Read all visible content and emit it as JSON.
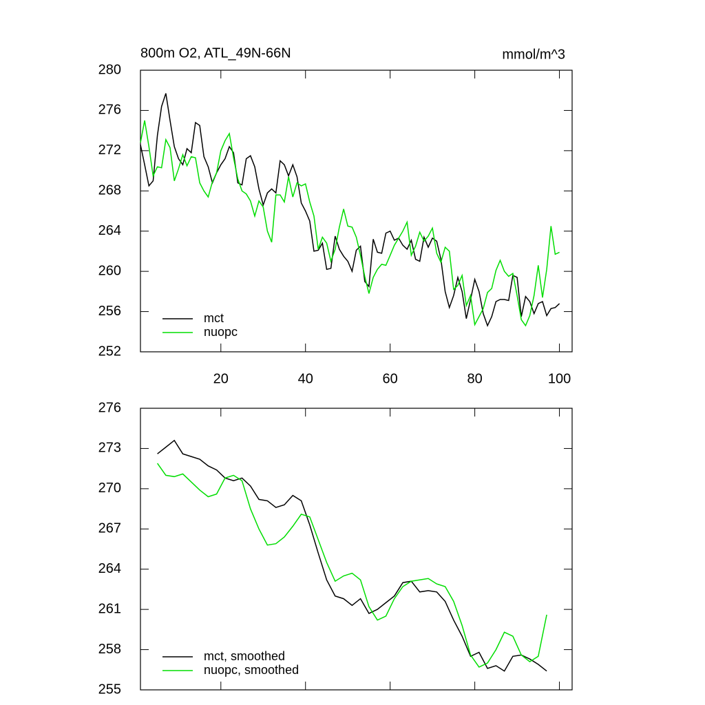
{
  "chart_data": [
    {
      "type": "line",
      "title": "800m O2, ATL_49N-66N",
      "subtitle": "mmol/m^3",
      "x": [
        1,
        2,
        3,
        4,
        5,
        6,
        7,
        8,
        9,
        10,
        11,
        12,
        13,
        14,
        15,
        16,
        17,
        18,
        19,
        20,
        21,
        22,
        23,
        24,
        25,
        26,
        27,
        28,
        29,
        30,
        31,
        32,
        33,
        34,
        35,
        36,
        37,
        38,
        39,
        40,
        41,
        42,
        43,
        44,
        45,
        46,
        47,
        48,
        49,
        50,
        51,
        52,
        53,
        54,
        55,
        56,
        57,
        58,
        59,
        60,
        61,
        62,
        63,
        64,
        65,
        66,
        67,
        68,
        69,
        70,
        71,
        72,
        73,
        74,
        75,
        76,
        77,
        78,
        79,
        80,
        81,
        82,
        83,
        84,
        85,
        86,
        87,
        88,
        89,
        90,
        91,
        92,
        93,
        94,
        95,
        96,
        97,
        98,
        99,
        100
      ],
      "series": [
        {
          "name": "mct",
          "color": "#000000",
          "values": [
            272.6,
            270.6,
            268.5,
            269,
            273.5,
            276.4,
            277.7,
            275,
            272.4,
            271.2,
            270.6,
            272.2,
            271.8,
            274.8,
            274.5,
            271.4,
            270.4,
            268.8,
            269.8,
            270.6,
            271.2,
            272.4,
            271.8,
            268.8,
            268.6,
            271.2,
            271.5,
            270.4,
            268.2,
            266.6,
            267.8,
            268.2,
            267.8,
            271,
            270.6,
            269.5,
            270.6,
            269.4,
            266.8,
            266,
            265,
            262,
            262.1,
            262.8,
            260.2,
            260.3,
            263.5,
            262.2,
            261.5,
            261,
            260,
            262.1,
            262.5,
            259,
            258.5,
            263.2,
            261.9,
            261.8,
            263.8,
            264,
            263.1,
            263.3,
            262.6,
            262.2,
            263.1,
            261.2,
            261,
            263.4,
            262.4,
            263.3,
            263,
            261.2,
            258,
            256.4,
            257.6,
            259.4,
            258,
            255.3,
            257.2,
            259.2,
            258,
            255.8,
            254.6,
            255.5,
            257,
            257.2,
            257.2,
            257.1,
            259.6,
            259.4,
            255.5,
            257.5,
            257,
            255.8,
            256.8,
            257,
            255.6,
            256.3,
            256.4,
            256.8
          ]
        },
        {
          "name": "nuopc",
          "color": "#00dd00",
          "values": [
            272.8,
            275,
            272.4,
            269.5,
            270.4,
            270.3,
            273.1,
            272.3,
            269,
            270.2,
            271.6,
            270.5,
            271.4,
            271.3,
            268.8,
            268,
            267.4,
            268.9,
            269.8,
            272,
            273,
            273.7,
            271.3,
            269.2,
            268,
            267.7,
            267,
            265.5,
            267,
            266.4,
            264,
            262.9,
            267.6,
            267.6,
            266.9,
            269.4,
            267.4,
            268.8,
            268.5,
            268.7,
            266.9,
            265.5,
            262.2,
            263.4,
            262.8,
            261,
            262.2,
            264.4,
            266.2,
            264.5,
            264.4,
            263.4,
            261.6,
            259.5,
            257.8,
            259.4,
            260.2,
            260.7,
            260.6,
            261.6,
            262.6,
            263.3,
            264,
            264.9,
            261.6,
            262.5,
            263.9,
            263,
            263.5,
            264.3,
            261.8,
            260.9,
            262.4,
            262,
            258.2,
            258.6,
            259.6,
            256.6,
            257.6,
            254.7,
            255.5,
            256.3,
            257.9,
            258.3,
            260.1,
            261.1,
            260,
            259.5,
            259.8,
            257.6,
            255.2,
            254.6,
            255.6,
            257.6,
            260.6,
            257.4,
            260.2,
            264.5,
            261.7,
            261.9
          ]
        }
      ],
      "xlim": [
        1,
        103
      ],
      "xticks": [
        20,
        40,
        60,
        80,
        100
      ],
      "xtick_labels": true,
      "ylim": [
        252,
        280
      ],
      "yticks": [
        252,
        256,
        260,
        264,
        268,
        272,
        276,
        280
      ],
      "legend": "lower left",
      "grid": false
    },
    {
      "type": "line",
      "x": [
        5,
        7,
        9,
        11,
        13,
        15,
        17,
        19,
        21,
        23,
        25,
        27,
        29,
        31,
        33,
        35,
        37,
        39,
        41,
        43,
        45,
        47,
        49,
        51,
        53,
        55,
        57,
        59,
        61,
        63,
        65,
        67,
        69,
        71,
        73,
        75,
        77,
        79,
        81,
        83,
        85,
        87,
        89,
        91,
        93,
        95,
        97
      ],
      "series": [
        {
          "name": "mct, smoothed",
          "color": "#000000",
          "values": [
            272.6,
            273.1,
            273.6,
            272.6,
            272.4,
            272.2,
            271.7,
            271.4,
            270.8,
            270.6,
            270.8,
            270.2,
            269.2,
            269.1,
            268.6,
            268.8,
            269.5,
            269.1,
            267.3,
            265.2,
            263.2,
            262,
            261.8,
            261.3,
            261.8,
            260.7,
            261,
            261.5,
            262,
            263,
            263.1,
            262.3,
            262.4,
            262.3,
            261.6,
            260.2,
            259,
            257.5,
            257.8,
            256.6,
            256.8,
            256.4,
            257.5,
            257.6,
            257.3,
            256.9,
            256.4
          ]
        },
        {
          "name": "nuopc, smoothed",
          "color": "#00dd00",
          "values": [
            271.9,
            271,
            270.9,
            271.1,
            270.5,
            269.9,
            269.4,
            269.6,
            270.8,
            271,
            270.6,
            268.5,
            267,
            265.8,
            265.9,
            266.4,
            267.2,
            268.1,
            267.9,
            266.2,
            264.5,
            263.1,
            263.5,
            263.7,
            263.2,
            261.2,
            260.2,
            260.5,
            261.8,
            262.7,
            263.1,
            263.2,
            263.3,
            262.9,
            262.7,
            261.6,
            259.8,
            257.6,
            256.7,
            257,
            258,
            259.3,
            259,
            257.6,
            257.1,
            257.5,
            260.6
          ]
        }
      ],
      "xlim": [
        1,
        103
      ],
      "xticks": [
        20,
        40,
        60,
        80,
        100
      ],
      "xtick_labels": false,
      "ylim": [
        255,
        276
      ],
      "yticks": [
        255,
        258,
        261,
        264,
        267,
        270,
        273,
        276
      ],
      "legend": "lower left",
      "grid": false
    }
  ]
}
